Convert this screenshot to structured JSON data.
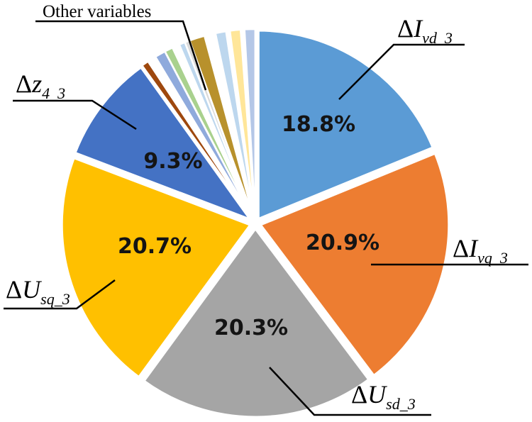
{
  "chart_data": {
    "type": "pie",
    "title": "",
    "slices": [
      {
        "name": "ΔIvd_3",
        "value": 18.8,
        "label": "18.8%",
        "color": "#5b9bd5"
      },
      {
        "name": "ΔIvq_3",
        "value": 20.9,
        "label": "20.9%",
        "color": "#ed7d31"
      },
      {
        "name": "ΔUsd_3",
        "value": 20.3,
        "label": "20.3%",
        "color": "#a5a5a5"
      },
      {
        "name": "ΔUsq_3",
        "value": 20.7,
        "label": "20.7%",
        "color": "#ffc000"
      },
      {
        "name": "Δz4_3",
        "value": 9.3,
        "label": "9.3%",
        "color": "#4472c4"
      }
    ],
    "other_slices": [
      {
        "value": 0.6,
        "color": "#9e480e"
      },
      {
        "value": 0.7,
        "color": "#ffffff"
      },
      {
        "value": 0.9,
        "color": "#8faadc"
      },
      {
        "value": 0.7,
        "color": "#a9d18e"
      },
      {
        "value": 0.6,
        "color": "#ffffff"
      },
      {
        "value": 0.5,
        "color": "#bdd7ee"
      },
      {
        "value": 0.4,
        "color": "#d9d9d9"
      },
      {
        "value": 1.3,
        "color": "#b8912c"
      },
      {
        "value": 0.9,
        "color": "#ffffff"
      },
      {
        "value": 0.9,
        "color": "#bdd7ee"
      },
      {
        "value": 0.3,
        "color": "#ffffff"
      },
      {
        "value": 0.9,
        "color": "#ffe699"
      },
      {
        "value": 0.3,
        "color": "#ffffff"
      },
      {
        "value": 0.9,
        "color": "#b4c7e7"
      }
    ],
    "other_label": "Other variables",
    "legend": "none"
  }
}
